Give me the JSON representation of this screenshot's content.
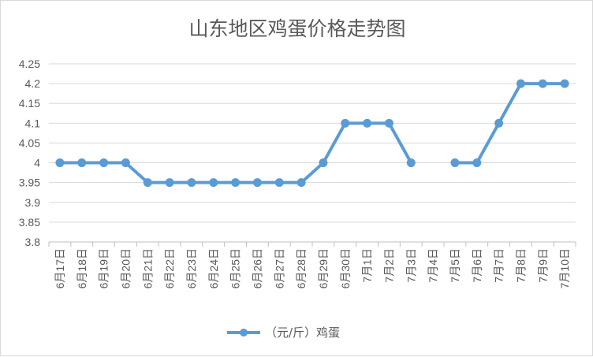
{
  "chart_data": {
    "type": "line",
    "title": "山东地区鸡蛋价格走势图",
    "xlabel": "",
    "ylabel": "",
    "categories": [
      "6月17日",
      "6月18日",
      "6月19日",
      "6月20日",
      "6月21日",
      "6月22日",
      "6月23日",
      "6月24日",
      "6月25日",
      "6月26日",
      "6月27日",
      "6月28日",
      "6月29日",
      "6月30日",
      "7月1日",
      "7月2日",
      "7月3日",
      "7月4日",
      "7月5日",
      "7月6日",
      "7月7日",
      "7月8日",
      "7月9日",
      "7月10日"
    ],
    "series": [
      {
        "name": "（元/斤）鸡蛋",
        "values": [
          4,
          4,
          4,
          4,
          3.95,
          3.95,
          3.95,
          3.95,
          3.95,
          3.95,
          3.95,
          3.95,
          4,
          4.1,
          4.1,
          4.1,
          4,
          null,
          4,
          4,
          4.1,
          4.2,
          4.2,
          4.2
        ],
        "color": "#5b9bd5"
      }
    ],
    "ylim": [
      3.8,
      4.25
    ],
    "yticks": [
      "3.8",
      "3.85",
      "3.9",
      "3.95",
      "4",
      "4.05",
      "4.1",
      "4.15",
      "4.2",
      "4.25"
    ],
    "grid": true,
    "legend": "bottom"
  }
}
